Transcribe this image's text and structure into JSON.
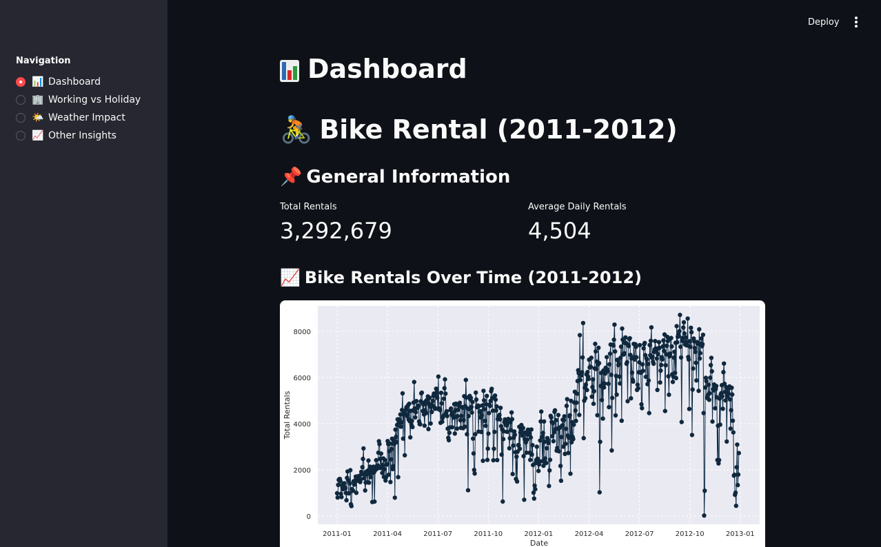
{
  "sidebar": {
    "title": "Navigation",
    "items": [
      {
        "emoji": "📊",
        "label": "Dashboard",
        "selected": true
      },
      {
        "emoji": "🏢",
        "label": "Working vs Holiday",
        "selected": false
      },
      {
        "emoji": "🌤️",
        "label": "Weather Impact",
        "selected": false
      },
      {
        "emoji": "📈",
        "label": "Other Insights",
        "selected": false
      }
    ]
  },
  "toolbar": {
    "deploy_label": "Deploy"
  },
  "page": {
    "title": "Dashboard",
    "subtitle": "Bike Rental (2011-2012)",
    "subtitle_emoji": "🚴",
    "general_heading": "General Information",
    "general_emoji": "📌",
    "chart_heading": "Bike Rentals Over Time (2011-2012)",
    "chart_emoji": "📈"
  },
  "metrics": [
    {
      "label": "Total Rentals",
      "value": "3,292,679"
    },
    {
      "label": "Average Daily Rentals",
      "value": "4,504"
    }
  ],
  "chart_data": {
    "type": "line",
    "xlabel": "Date",
    "ylabel": "Total Rentals",
    "ylim": [
      0,
      8800
    ],
    "yticks": [
      0,
      2000,
      4000,
      6000,
      8000
    ],
    "xticks": [
      "2011-01",
      "2011-04",
      "2011-07",
      "2011-10",
      "2012-01",
      "2012-04",
      "2012-07",
      "2012-10",
      "2013-01"
    ],
    "series": [
      {
        "values": [
          985,
          801,
          1349,
          1562,
          1600,
          1606,
          1510,
          959,
          822,
          1321,
          1263,
          1162,
          1406,
          1421,
          1248,
          1204,
          1000,
          683,
          1650,
          1927,
          1543,
          981,
          986,
          1416,
          1985,
          506,
          431,
          1167,
          1098,
          1096,
          1501,
          1360,
          1526,
          1550,
          1708,
          1005,
          1623,
          1712,
          1530,
          1605,
          1538,
          1746,
          1472,
          1589,
          1913,
          1815,
          2115,
          2475,
          2927,
          1635,
          1812,
          1107,
          1450,
          1917,
          1807,
          1461,
          1969,
          2402,
          1446,
          1851,
          2134,
          1685,
          1944,
          2077,
          605,
          1872,
          2133,
          1891,
          623,
          1977,
          2132,
          2417,
          2046,
          2056,
          2192,
          2744,
          3239,
          3117,
          2471,
          2077,
          2703,
          2121,
          1865,
          2210,
          2496,
          1693,
          2028,
          2425,
          1536,
          1685,
          2227,
          2252,
          3249,
          3115,
          1795,
          2808,
          3141,
          1471,
          2455,
          2895,
          3348,
          2034,
          2162,
          3267,
          3126,
          795,
          3744,
          3429,
          3204,
          3944,
          4189,
          1683,
          4036,
          4191,
          4073,
          4400,
          3872,
          4058,
          4595,
          5312,
          3351,
          4401,
          4451,
          2633,
          4433,
          4608,
          4714,
          4333,
          4362,
          4803,
          4182,
          4864,
          4105,
          3409,
          4553,
          3958,
          4123,
          3855,
          4575,
          4917,
          5805,
          4660,
          4274,
          4492,
          4978,
          4677,
          4679,
          4758,
          4788,
          4098,
          3982,
          3974,
          4968,
          5312,
          5342,
          4906,
          4548,
          4833,
          4401,
          3915,
          4586,
          4966,
          4460,
          5020,
          4891,
          5180,
          3767,
          4844,
          5119,
          4744,
          4010,
          4835,
          4507,
          4790,
          4991,
          5202,
          5305,
          4708,
          4648,
          5225,
          5515,
          5362,
          5119,
          4649,
          6043,
          4665,
          4629,
          4592,
          4040,
          5336,
          4881,
          4086,
          4258,
          4342,
          5084,
          5538,
          5923,
          5302,
          4458,
          4541,
          4332,
          3784,
          3387,
          3285,
          3606,
          3840,
          4590,
          4656,
          4390,
          3846,
          4475,
          4302,
          4266,
          4845,
          3574,
          4576,
          4866,
          4294,
          3785,
          4326,
          4602,
          4780,
          4792,
          4905,
          4150,
          3820,
          4338,
          4725,
          4694,
          3805,
          4153,
          5191,
          3873,
          4758,
          5895,
          5130,
          3542,
          4661,
          1115,
          4334,
          4634,
          5204,
          5058,
          5115,
          4727,
          4484,
          4940,
          3351,
          2710,
          1996,
          1842,
          3544,
          5345,
          5046,
          4713,
          4763,
          4785,
          3659,
          4760,
          4511,
          4274,
          4539,
          3641,
          4352,
          4795,
          2395,
          5423,
          5010,
          4630,
          4120,
          3907,
          4839,
          5202,
          2429,
          2918,
          3570,
          4456,
          4826,
          4765,
          4985,
          5409,
          5511,
          5117,
          4563,
          2416,
          2913,
          3644,
          5217,
          5041,
          4570,
          4748,
          2424,
          4195,
          4304,
          4308,
          4381,
          4187,
          4687,
          3894,
          2659,
          3747,
          627,
          3331,
          3669,
          4068,
          4186,
          3974,
          4046,
          3926,
          3649,
          4035,
          4205,
          4109,
          2933,
          3368,
          4067,
          3717,
          4486,
          4195,
          1817,
          3053,
          3392,
          3663,
          3520,
          2765,
          1607,
          2566,
          1495,
          2792,
          3068,
          3071,
          3867,
          2914,
          3613,
          3727,
          3940,
          3614,
          3485,
          3811,
          2594,
          705,
          3322,
          3620,
          3190,
          2743,
          3310,
          3523,
          3740,
          3709,
          3577,
          2739,
          2431,
          3403,
          3750,
          2660,
          3068,
          2209,
          1011,
          754,
          1317,
          1162,
          2302,
          2423,
          2999,
          2485,
          2294,
          1951,
          2236,
          2368,
          3272,
          4098,
          4521,
          3425,
          2376,
          3598,
          2177,
          4097,
          3214,
          2493,
          2311,
          2298,
          2935,
          3376,
          3292,
          3163,
          1301,
          1977,
          2432,
          4339,
          4270,
          4075,
          3456,
          4023,
          3243,
          3624,
          4509,
          4579,
          3761,
          4151,
          2832,
          2947,
          3784,
          4375,
          2802,
          3830,
          3831,
          2169,
          1529,
          3422,
          3922,
          4169,
          3005,
          4154,
          4318,
          2689,
          3129,
          3777,
          4773,
          5062,
          3487,
          2732,
          3389,
          4322,
          4363,
          1834,
          4990,
          3194,
          4066,
          3423,
          3333,
          3956,
          4916,
          5382,
          4569,
          4118,
          4911,
          5298,
          5847,
          6312,
          6192,
          4378,
          7836,
          5892,
          6153,
          6093,
          6230,
          6871,
          8362,
          3372,
          4996,
          5558,
          5102,
          5698,
          6133,
          5459,
          6235,
          6041,
          5936,
          6772,
          6436,
          6457,
          6460,
          6857,
          5169,
          5585,
          5918,
          4862,
          5409,
          6398,
          7460,
          7132,
          6370,
          6691,
          4367,
          6565,
          7290,
          6624,
          1027,
          3214,
          5633,
          6196,
          5026,
          6233,
          4220,
          6304,
          5572,
          5740,
          6169,
          6421,
          6296,
          6883,
          6359,
          6273,
          5728,
          4717,
          6572,
          7030,
          7429,
          6118,
          2843,
          5115,
          7424,
          7384,
          7639,
          8294,
          7129,
          4359,
          6073,
          5260,
          6770,
          6734,
          6536,
          6591,
          6043,
          5743,
          6855,
          7338,
          4127,
          8120,
          7641,
          6998,
          7001,
          7055,
          7494,
          7736,
          7498,
          6598,
          6664,
          4972,
          7421,
          7363,
          7665,
          7702,
          6978,
          5099,
          6825,
          6211,
          5905,
          5823,
          7458,
          6891,
          6779,
          7442,
          7335,
          6879,
          5463,
          5687,
          5531,
          6227,
          6660,
          7403,
          6241,
          6207,
          4840,
          4672,
          6569,
          6290,
          7264,
          7446,
          7499,
          6969,
          6031,
          6830,
          6786,
          5713,
          6591,
          5870,
          4459,
          7410,
          6966,
          7592,
          8173,
          6861,
          6904,
          6685,
          6597,
          7105,
          7216,
          7580,
          7261,
          7175,
          6824,
          5464,
          7013,
          7273,
          7534,
          7286,
          5786,
          6299,
          6544,
          6883,
          6784,
          7347,
          7605,
          7148,
          7865,
          4549,
          6530,
          7006,
          7375,
          7765,
          7582,
          6053,
          5255,
          6917,
          7040,
          7697,
          7713,
          7350,
          6140,
          5810,
          6034,
          6864,
          7112,
          6203,
          7504,
          5976,
          8227,
          7525,
          7767,
          7870,
          7804,
          8009,
          8714,
          7333,
          6869,
          4073,
          7591,
          7720,
          8167,
          8395,
          7907,
          7436,
          7538,
          7733,
          7393,
          7415,
          8555,
          6889,
          6778,
          4639,
          7572,
          7328,
          8156,
          7965,
          3510,
          5478,
          6392,
          7691,
          7570,
          7282,
          7109,
          6639,
          5875,
          7534,
          7461,
          7509,
          5424,
          8090,
          6824,
          7058,
          7466,
          7693,
          7359,
          7444,
          7852,
          4459,
          22,
          1096,
          5566,
          5986,
          5847,
          5138,
          5107,
          5259,
          5686,
          5035,
          5315,
          5992,
          6536,
          6852,
          6269,
          4094,
          5495,
          5445,
          5698,
          5629,
          4669,
          5499,
          5634,
          5146,
          2425,
          3910,
          2277,
          2424,
          5087,
          3959,
          5260,
          5323,
          5668,
          5191,
          4649,
          6234,
          6606,
          5729,
          5375,
          5008,
          5582,
          3228,
          5170,
          5501,
          5319,
          5532,
          5611,
          5047,
          3786,
          4585,
          5557,
          5267,
          4128,
          3623,
          1749,
          1787,
          920,
          1013,
          441,
          2114,
          3095,
          1341,
          1796,
          2729
        ]
      }
    ]
  }
}
